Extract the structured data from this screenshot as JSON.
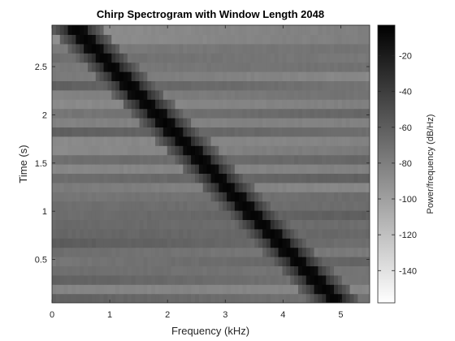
{
  "chart_data": {
    "type": "heatmap",
    "title": "Chirp Spectrogram with Window Length 2048",
    "xlabel": "Frequency (kHz)",
    "ylabel": "Time (s)",
    "colorbar_label": "Power/frequency (dB/Hz)",
    "colormap": "gray (black = high, white = low)",
    "xlim": [
      0,
      5.5
    ],
    "ylim": [
      0.05,
      2.93
    ],
    "clim": [
      -158,
      -3
    ],
    "x_ticks": [
      0,
      1,
      2,
      3,
      4,
      5
    ],
    "x_tick_labels": [
      "0",
      "1",
      "2",
      "3",
      "4",
      "5"
    ],
    "y_ticks": [
      0.5,
      1,
      1.5,
      2,
      2.5
    ],
    "y_tick_labels": [
      "0.5",
      "1",
      "1.5",
      "2",
      "2.5"
    ],
    "colorbar_ticks": [
      -140,
      -120,
      -100,
      -80,
      -60,
      -40,
      -20
    ],
    "colorbar_tick_labels": [
      "-140",
      "-120",
      "-100",
      "-80",
      "-60",
      "-40",
      "-20"
    ],
    "background_level_db": -75,
    "chirp_ridge": {
      "description_of_trace": "diagonal high-power ridge",
      "points": [
        {
          "time": 2.93,
          "frequency": 0.35
        },
        {
          "time": 0.05,
          "frequency": 4.95
        }
      ],
      "peak_level_db": -5
    },
    "time_bins": 30,
    "frequency_bins": 80
  }
}
